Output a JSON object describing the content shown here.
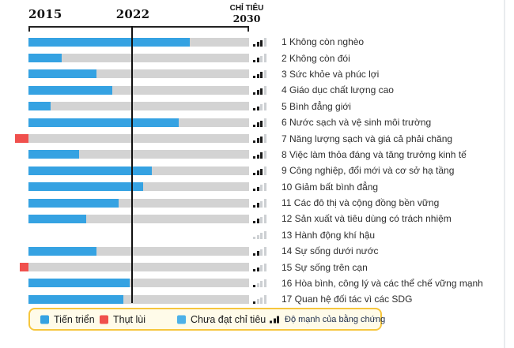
{
  "colors": {
    "progress_blue": "#35a2e2",
    "not_met_blue": "#4db1e8",
    "regression_red": "#f0504d",
    "track_gray": "#d3d3d3",
    "evidence_dark": "#1b1b1b",
    "evidence_light": "#cdd0d3",
    "legend_bg": "#fffbe9",
    "legend_border": "#f6c63d"
  },
  "header": {
    "start_year": "2015",
    "marker_year": "2022",
    "target_label": "CHỈ TIÊU",
    "target_year": "2030"
  },
  "legend": {
    "progress": "Tiến triển",
    "regression": "Thụt lùi",
    "not_met": "Chưa đạt chỉ tiêu",
    "evidence": "Độ mạnh của bằng chứng"
  },
  "chart_data": {
    "type": "bar",
    "orientation": "horizontal",
    "x_domain": {
      "start": 2015,
      "marker": 2022,
      "end": 2030
    },
    "marker_position_pct": 46.7,
    "value_unit": "percent of 2015→2030 target distance",
    "evidence_scale_max": 4,
    "goals": [
      {
        "label": "1 Không còn nghèo",
        "progress_pct": 73,
        "regression_pct": 0,
        "evidence": 3,
        "has_bar": true
      },
      {
        "label": "2 Không còn đói",
        "progress_pct": 15,
        "regression_pct": 0,
        "evidence": 2,
        "has_bar": true
      },
      {
        "label": "3 Sức khỏe và phúc lợi",
        "progress_pct": 31,
        "regression_pct": 0,
        "evidence": 3,
        "has_bar": true
      },
      {
        "label": "4 Giáo dục chất lượng cao",
        "progress_pct": 38,
        "regression_pct": 0,
        "evidence": 3,
        "has_bar": true
      },
      {
        "label": "5 Bình đẳng giới",
        "progress_pct": 10,
        "regression_pct": 0,
        "evidence": 2,
        "has_bar": true
      },
      {
        "label": "6 Nước sạch và vệ sinh môi trường",
        "progress_pct": 68,
        "regression_pct": 0,
        "evidence": 3,
        "has_bar": true
      },
      {
        "label": "7 Năng lượng sạch và giá cả phải chăng",
        "progress_pct": 0,
        "regression_pct": 6,
        "evidence": 3,
        "has_bar": true
      },
      {
        "label": "8 Việc làm thỏa đáng và tăng trưởng kinh tế",
        "progress_pct": 23,
        "regression_pct": 0,
        "evidence": 3,
        "has_bar": true
      },
      {
        "label": "9 Công nghiệp, đổi mới và cơ sở hạ tầng",
        "progress_pct": 56,
        "regression_pct": 0,
        "evidence": 3,
        "has_bar": true
      },
      {
        "label": "10 Giảm bất bình đẳng",
        "progress_pct": 52,
        "regression_pct": 0,
        "evidence": 2,
        "has_bar": true
      },
      {
        "label": "11 Các đô thị và cộng đồng bền vững",
        "progress_pct": 41,
        "regression_pct": 0,
        "evidence": 2,
        "has_bar": true
      },
      {
        "label": "12 Sản xuất và tiêu dùng có trách nhiệm",
        "progress_pct": 26,
        "regression_pct": 0,
        "evidence": 2,
        "has_bar": true
      },
      {
        "label": "13 Hành động khí hậu",
        "progress_pct": null,
        "regression_pct": 0,
        "evidence": 0,
        "has_bar": false
      },
      {
        "label": "14 Sự sống dưới nước",
        "progress_pct": 31,
        "regression_pct": 0,
        "evidence": 2,
        "has_bar": true
      },
      {
        "label": "15 Sự sống trên cạn",
        "progress_pct": 0,
        "regression_pct": 4,
        "evidence": 2,
        "has_bar": true
      },
      {
        "label": "16 Hòa bình, công lý và các thể chế vững mạnh",
        "progress_pct": 46,
        "regression_pct": 0,
        "evidence": 1,
        "has_bar": true
      },
      {
        "label": "17 Quan hệ đối tác vì các SDG",
        "progress_pct": 43,
        "regression_pct": 0,
        "evidence": 1,
        "has_bar": true
      }
    ]
  }
}
